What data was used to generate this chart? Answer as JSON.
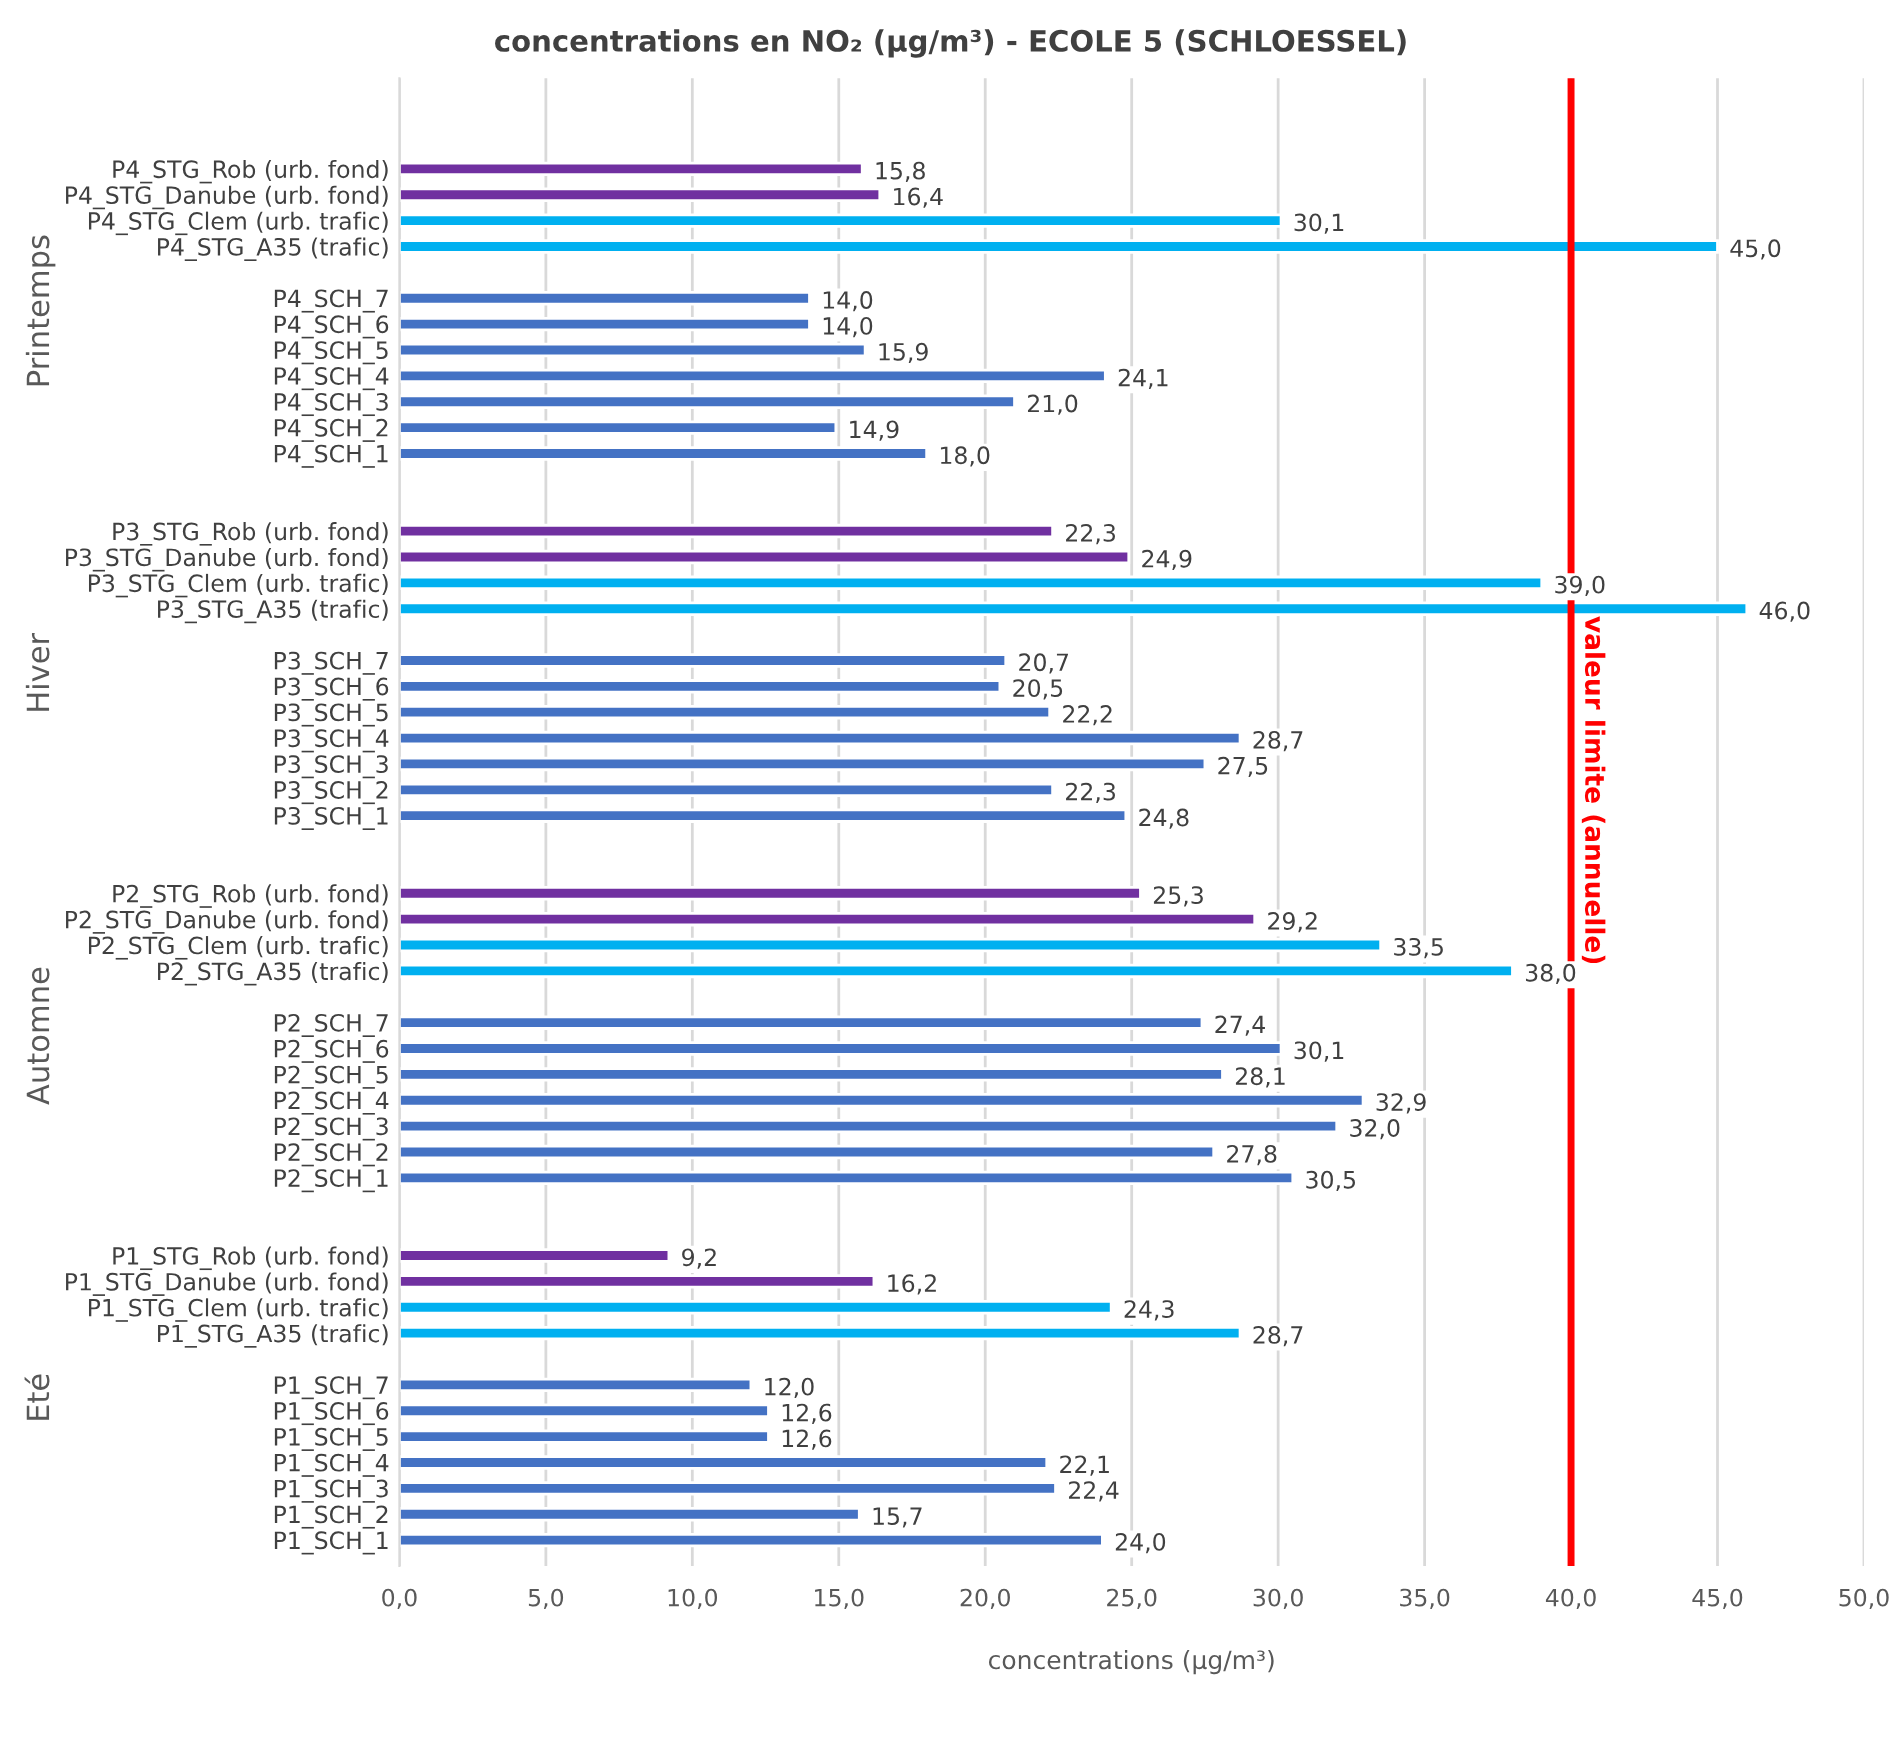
{
  "chart_data": {
    "type": "bar",
    "orientation": "horizontal",
    "title": "concentrations en NO₂ (µg/m³) - ECOLE 5 (SCHLOESSEL)",
    "xlabel": "concentrations (µg/m³)",
    "categories": [
      "P4_STG_Rob (urb. fond)",
      "P4_STG_Danube (urb. fond)",
      "P4_STG_Clem (urb. trafic)",
      "P4_STG_A35 (trafic)",
      null,
      "P4_SCH_7",
      "P4_SCH_6",
      "P4_SCH_5",
      "P4_SCH_4",
      "P4_SCH_3",
      "P4_SCH_2",
      "P4_SCH_1",
      null,
      null,
      "P3_STG_Rob (urb. fond)",
      "P3_STG_Danube (urb. fond)",
      "P3_STG_Clem (urb. trafic)",
      "P3_STG_A35 (trafic)",
      null,
      "P3_SCH_7",
      "P3_SCH_6",
      "P3_SCH_5",
      "P3_SCH_4",
      "P3_SCH_3",
      "P3_SCH_2",
      "P3_SCH_1",
      null,
      null,
      "P2_STG_Rob (urb. fond)",
      "P2_STG_Danube (urb. fond)",
      "P2_STG_Clem (urb. trafic)",
      "P2_STG_A35 (trafic)",
      null,
      "P2_SCH_7",
      "P2_SCH_6",
      "P2_SCH_5",
      "P2_SCH_4",
      "P2_SCH_3",
      "P2_SCH_2",
      "P2_SCH_1",
      null,
      null,
      "P1_STG_Rob (urb. fond)",
      "P1_STG_Danube (urb. fond)",
      "P1_STG_Clem (urb. trafic)",
      "P1_STG_A35 (trafic)",
      null,
      "P1_SCH_7",
      "P1_SCH_6",
      "P1_SCH_5",
      "P1_SCH_4",
      "P1_SCH_3",
      "P1_SCH_2",
      "P1_SCH_1"
    ],
    "values": [
      15.8,
      16.4,
      30.1,
      45.0,
      null,
      14.0,
      14.0,
      15.9,
      24.1,
      21.0,
      14.9,
      18.0,
      null,
      null,
      22.3,
      24.9,
      39.0,
      46.0,
      null,
      20.7,
      20.5,
      22.2,
      28.7,
      27.5,
      22.3,
      24.8,
      null,
      null,
      25.3,
      29.2,
      33.5,
      38.0,
      null,
      27.4,
      30.1,
      28.1,
      32.9,
      32.0,
      27.8,
      30.5,
      null,
      null,
      9.2,
      16.2,
      24.3,
      28.7,
      null,
      12.0,
      12.6,
      12.6,
      22.1,
      22.4,
      15.7,
      24.0
    ],
    "value_labels": [
      "15,8",
      "16,4",
      "30,1",
      "45,0",
      null,
      "14,0",
      "14,0",
      "15,9",
      "24,1",
      "21,0",
      "14,9",
      "18,0",
      null,
      null,
      "22,3",
      "24,9",
      "39,0",
      "46,0",
      null,
      "20,7",
      "20,5",
      "22,2",
      "28,7",
      "27,5",
      "22,3",
      "24,8",
      null,
      null,
      "25,3",
      "29,2",
      "33,5",
      "38,0",
      null,
      "27,4",
      "30,1",
      "28,1",
      "32,9",
      "32,0",
      "27,8",
      "30,5",
      null,
      null,
      "9,2",
      "16,2",
      "24,3",
      "28,7",
      null,
      "12,0",
      "12,6",
      "12,6",
      "22,1",
      "22,4",
      "15,7",
      "24,0"
    ],
    "colors": [
      "#7030a0",
      "#7030a0",
      "#00b0f0",
      "#00b0f0",
      null,
      "#4472c4",
      "#4472c4",
      "#4472c4",
      "#4472c4",
      "#4472c4",
      "#4472c4",
      "#4472c4",
      null,
      null,
      "#7030a0",
      "#7030a0",
      "#00b0f0",
      "#00b0f0",
      null,
      "#4472c4",
      "#4472c4",
      "#4472c4",
      "#4472c4",
      "#4472c4",
      "#4472c4",
      "#4472c4",
      null,
      null,
      "#7030a0",
      "#7030a0",
      "#00b0f0",
      "#00b0f0",
      null,
      "#4472c4",
      "#4472c4",
      "#4472c4",
      "#4472c4",
      "#4472c4",
      "#4472c4",
      "#4472c4",
      null,
      null,
      "#7030a0",
      "#7030a0",
      "#00b0f0",
      "#00b0f0",
      null,
      "#4472c4",
      "#4472c4",
      "#4472c4",
      "#4472c4",
      "#4472c4",
      "#4472c4",
      "#4472c4"
    ],
    "xlim": [
      0,
      50
    ],
    "xticks": [
      {
        "value": 0,
        "label": "0,0"
      },
      {
        "value": 5,
        "label": "5,0"
      },
      {
        "value": 10,
        "label": "10,0"
      },
      {
        "value": 15,
        "label": "15,0"
      },
      {
        "value": 20,
        "label": "20,0"
      },
      {
        "value": 25,
        "label": "25,0"
      },
      {
        "value": 30,
        "label": "30,0"
      },
      {
        "value": 35,
        "label": "35,0"
      },
      {
        "value": 40,
        "label": "40,0"
      },
      {
        "value": 45,
        "label": "45,0"
      },
      {
        "value": 50,
        "label": "50,0"
      }
    ],
    "grid": "x",
    "legend": false,
    "ref_lines": [
      {
        "axis": "x",
        "value": 40,
        "label": "valeur limite (annuelle)",
        "color": "#ff0000"
      }
    ],
    "annotations": [
      "Printemps",
      "Hiver",
      "Automne",
      "Eté"
    ]
  }
}
